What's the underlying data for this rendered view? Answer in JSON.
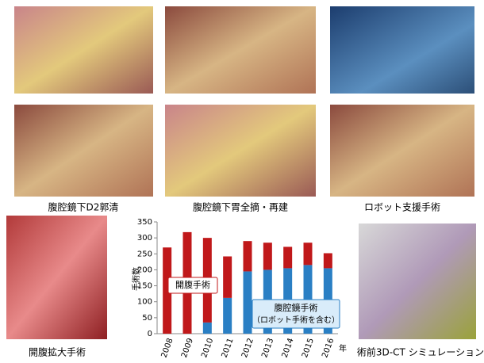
{
  "captions": [
    "腹腔鏡下D2郭清",
    "腹腔鏡下胃全摘・再建",
    "ロボット支援手術",
    "開腹拡大手術",
    "術前3D-CT シミュレーション"
  ],
  "chart_data": {
    "type": "stacked_bar",
    "y_label": "手術数",
    "x_label": "年",
    "categories": [
      "2008",
      "2009",
      "2010",
      "2011",
      "2012",
      "2013",
      "2014",
      "2015",
      "2016"
    ],
    "series": [
      {
        "name": "開腹手術",
        "color": "#c0181a",
        "values": [
          270,
          318,
          265,
          130,
          95,
          85,
          67,
          70,
          47
        ]
      },
      {
        "name": "腹腔鏡手術",
        "color": "#2a7fc4",
        "values": [
          0,
          0,
          35,
          112,
          195,
          200,
          205,
          215,
          205
        ]
      }
    ],
    "legend_note": "（ロボット手術を含む）",
    "ylim": [
      0,
      350
    ],
    "yticks": [
      0,
      50,
      100,
      150,
      200,
      250,
      300,
      350
    ]
  }
}
